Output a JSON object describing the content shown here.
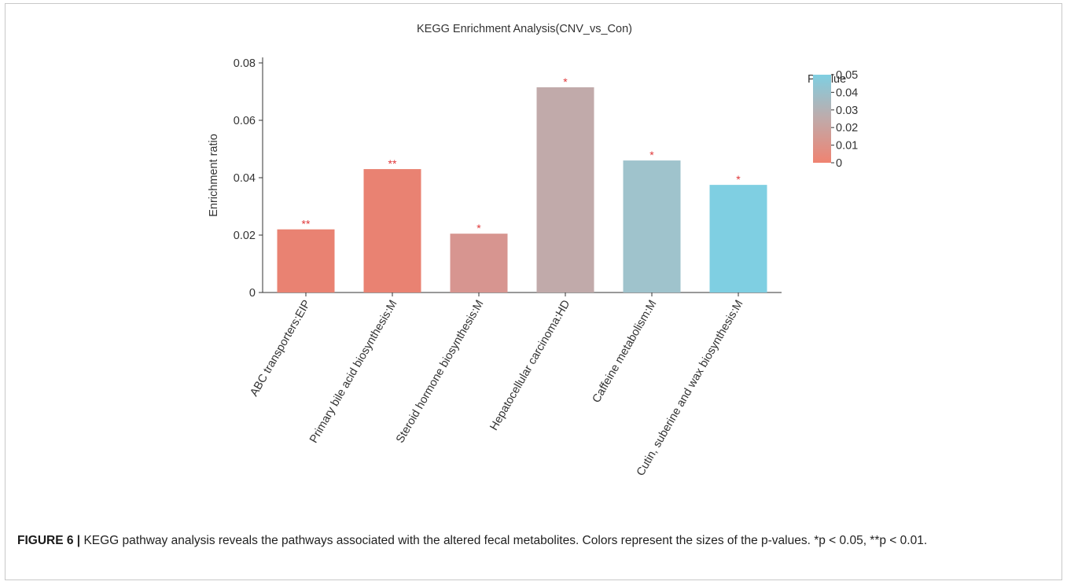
{
  "chart_data": {
    "type": "bar",
    "title": "KEGG Enrichment Analysis(CNV_vs_Con)",
    "xlabel": "",
    "ylabel": "Enrichment ratio",
    "ylim": [
      0,
      0.08
    ],
    "yticks": [
      "0",
      "0.02",
      "0.04",
      "0.06",
      "0.08"
    ],
    "ytick_values": [
      0,
      0.02,
      0.04,
      0.06,
      0.08
    ],
    "categories": [
      "ABC transporters:EIP",
      "Primary bile acid biosynthesis:M",
      "Steroid hormone biosynthesis:M",
      "Hepatocellular carcinoma:HD",
      "Caffeine metabolism:M",
      "Cutin, suberine and wax biosynthesis:M"
    ],
    "values": [
      0.022,
      0.043,
      0.0205,
      0.0715,
      0.046,
      0.0375
    ],
    "significance": [
      "**",
      "**",
      "*",
      "*",
      "*",
      "*"
    ],
    "p_values": [
      0.002,
      0.004,
      0.012,
      0.03,
      0.04,
      0.05
    ],
    "bar_colors": [
      "#e98272",
      "#e98272",
      "#d79590",
      "#c1aaaa",
      "#9fc3cc",
      "#7fcfe2"
    ],
    "grid": false,
    "legend": {
      "title": "P-value",
      "placement": "top-right",
      "ticks": [
        "0.05",
        "0.04",
        "0.03",
        "0.02",
        "0.01",
        "0"
      ],
      "tick_values": [
        0.05,
        0.04,
        0.03,
        0.02,
        0.01,
        0
      ],
      "color_low": "#ef8371",
      "color_mid": "#c0aaaa",
      "color_high": "#7fcfe2"
    }
  },
  "caption": {
    "label": "FIGURE 6",
    "separator": "|",
    "text": "KEGG pathway analysis reveals the pathways associated with the altered fecal metabolites. Colors represent the sizes of the p-values. *p < 0.05, **p < 0.01."
  },
  "colors": {
    "significance_mark": "#e0383a",
    "axis": "#333333",
    "frame": "#c8c8c8"
  }
}
